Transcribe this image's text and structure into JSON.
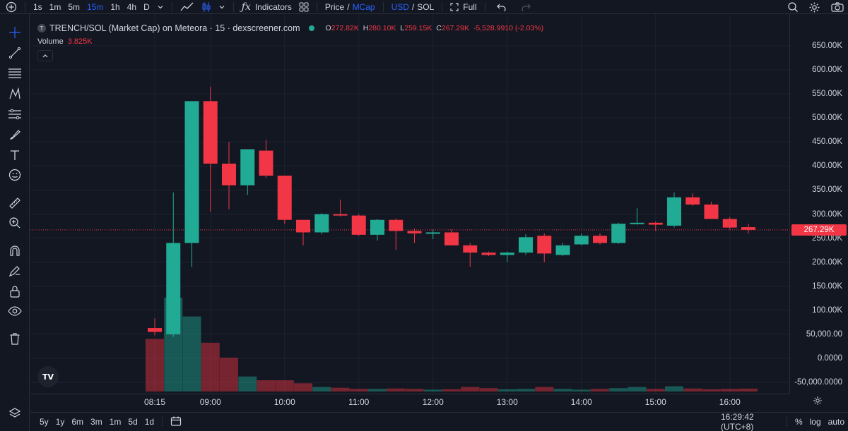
{
  "toolbar": {
    "intervals": [
      "1s",
      "1m",
      "5m",
      "15m",
      "1h",
      "4h",
      "D"
    ],
    "active_interval": "15m",
    "indicators_label": "Indicators",
    "price_label": "Price",
    "price_sep": "/",
    "mcap_label": "MCap",
    "usd_label": "USD",
    "currency_sep": "/",
    "sol_label": "SOL",
    "full_label": "Full"
  },
  "legend": {
    "symbol_letter": "T",
    "title": "TRENCH/SOL (Market Cap) on Meteora · 15 · dexscreener.com",
    "o_label": "O",
    "o_value": "272.82K",
    "h_label": "H",
    "h_value": "280.10K",
    "l_label": "L",
    "l_value": "259.15K",
    "c_label": "C",
    "c_value": "267.29K",
    "change": "-5,528.9910 (-2.03%)",
    "volume_label": "Volume",
    "volume_value": "3.825K"
  },
  "price_axis": {
    "ticks": [
      "650.00K",
      "600.00K",
      "550.00K",
      "500.00K",
      "450.00K",
      "400.00K",
      "350.00K",
      "300.00K",
      "250.00K",
      "200.00K",
      "150.00K",
      "100.00K",
      "50,000.00",
      "0.0000",
      "-50,000.0000"
    ],
    "current_price": "267.29K"
  },
  "time_axis": {
    "ticks": [
      "08:15",
      "09:00",
      "10:00",
      "11:00",
      "12:00",
      "13:00",
      "14:00",
      "15:00",
      "16:00"
    ]
  },
  "bottom_bar": {
    "ranges": [
      "5y",
      "1y",
      "6m",
      "3m",
      "1m",
      "5d",
      "1d"
    ],
    "clock": "16:29:42 (UTC+8)",
    "percent_label": "%",
    "log_label": "log",
    "auto_label": "auto"
  },
  "logo_text": "TV",
  "colors": {
    "up": "#22ab94",
    "down": "#f23645",
    "background": "#131722",
    "grid": "#1e2230",
    "accent": "#2962ff"
  },
  "chart_data": {
    "type": "candlestick",
    "title": "TRENCH/SOL (Market Cap) on Meteora · 15 · dexscreener.com",
    "x": [
      "08:15",
      "08:30",
      "08:45",
      "09:00",
      "09:15",
      "09:30",
      "09:45",
      "10:00",
      "10:15",
      "10:30",
      "10:45",
      "11:00",
      "11:15",
      "11:30",
      "11:45",
      "12:00",
      "12:15",
      "12:30",
      "12:45",
      "13:00",
      "13:15",
      "13:30",
      "13:45",
      "14:00",
      "14:15",
      "14:30",
      "14:45",
      "15:00",
      "15:15",
      "15:30",
      "15:45",
      "16:00",
      "16:15"
    ],
    "ohlc": [
      [
        63000,
        83000,
        48000,
        55000
      ],
      [
        50000,
        345000,
        45000,
        240000
      ],
      [
        240000,
        535000,
        190000,
        535000
      ],
      [
        535000,
        565000,
        305000,
        405000
      ],
      [
        405000,
        450000,
        310000,
        360000
      ],
      [
        360000,
        435000,
        340000,
        435000
      ],
      [
        432000,
        455000,
        375000,
        380000
      ],
      [
        380000,
        380000,
        280000,
        288000
      ],
      [
        288000,
        288000,
        235000,
        262000
      ],
      [
        262000,
        302000,
        258000,
        300000
      ],
      [
        300000,
        330000,
        295000,
        297000
      ],
      [
        297000,
        300000,
        255000,
        257000
      ],
      [
        257000,
        290000,
        245000,
        288000
      ],
      [
        288000,
        291000,
        225000,
        265000
      ],
      [
        265000,
        270000,
        240000,
        260000
      ],
      [
        260000,
        268000,
        248000,
        262000
      ],
      [
        262000,
        268000,
        240000,
        235000
      ],
      [
        235000,
        240000,
        190000,
        220000
      ],
      [
        220000,
        222000,
        213000,
        215000
      ],
      [
        215000,
        222000,
        200000,
        220000
      ],
      [
        220000,
        258000,
        215000,
        252000
      ],
      [
        255000,
        260000,
        200000,
        218000
      ],
      [
        215000,
        240000,
        213000,
        235000
      ],
      [
        237000,
        260000,
        235000,
        255000
      ],
      [
        255000,
        260000,
        237000,
        240000
      ],
      [
        240000,
        282000,
        238000,
        280000
      ],
      [
        280000,
        312000,
        278000,
        282000
      ],
      [
        282000,
        285000,
        265000,
        278000
      ],
      [
        276000,
        345000,
        272000,
        335000
      ],
      [
        335000,
        343000,
        317000,
        320000
      ],
      [
        320000,
        326000,
        290000,
        290000
      ],
      [
        290000,
        294000,
        268000,
        272000
      ],
      [
        272820,
        280100,
        259150,
        267290
      ]
    ],
    "volume": [
      70000,
      125000,
      100000,
      65000,
      45000,
      20000,
      15000,
      15000,
      11000,
      6000,
      5000,
      3500,
      3500,
      4000,
      3500,
      2500,
      3000,
      6000,
      4500,
      3000,
      3500,
      6000,
      3500,
      2500,
      3500,
      4500,
      6000,
      3500,
      7000,
      4000,
      3000,
      3500,
      3825
    ],
    "ylim": [
      -60000,
      680000
    ],
    "grid": true
  }
}
